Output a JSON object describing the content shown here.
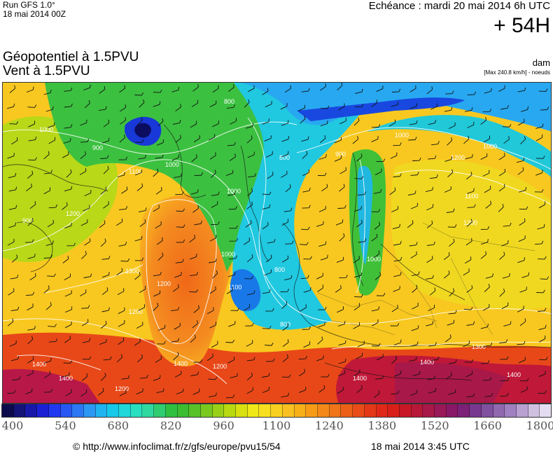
{
  "header": {
    "run_model": "Run GFS 1.0°",
    "run_date": "18 mai 2014 00Z",
    "forecast_time": "Echéance : mardi 20 mai 2014 6h UTC",
    "forecast_offset": "+ 54H"
  },
  "titles": {
    "line1": "Géopotentiel à 1.5PVU",
    "line2": "Vent à 1.5PVU",
    "unit": "dam",
    "max_wind": "[Max 240.8 km/h] - noeuds"
  },
  "map": {
    "contour_labels": [
      "1000",
      "900",
      "800",
      "1000",
      "1100",
      "1000",
      "800",
      "900",
      "1000",
      "1200",
      "1100",
      "1000",
      "1200",
      "1200",
      "1300",
      "1200",
      "1000",
      "800",
      "1100",
      "1000",
      "1200",
      "800",
      "1400",
      "1400",
      "1400",
      "1200",
      "1400",
      "1400",
      "1300",
      "1400",
      "900",
      "1200"
    ],
    "colors": {
      "trough": "#2030d8",
      "jet": "#1ca8f0",
      "mid": "#3cc83c",
      "ridge_yellow": "#e8e020",
      "ridge_orange": "#f07820",
      "ridge_red": "#e02818",
      "high": "#a01858"
    }
  },
  "scale": {
    "colors": [
      "#0c0c4c",
      "#141478",
      "#1818a8",
      "#1c20d4",
      "#2038f0",
      "#2858f4",
      "#2c78f4",
      "#2c98f4",
      "#20b4f0",
      "#18c8e8",
      "#20d8d8",
      "#28e0c0",
      "#30d8a0",
      "#30cc70",
      "#30c040",
      "#3cbc30",
      "#58c028",
      "#78c820",
      "#98d018",
      "#b8d810",
      "#d8e010",
      "#f0e818",
      "#f8e020",
      "#f8d020",
      "#f8c020",
      "#f8b018",
      "#f89c18",
      "#f48818",
      "#f07418",
      "#ec6018",
      "#e84c18",
      "#e43818",
      "#e02818",
      "#d82018",
      "#c81828",
      "#b81838",
      "#a81848",
      "#981858",
      "#8a1868",
      "#7c2078",
      "#783890",
      "#8050a0",
      "#9068b0",
      "#a080c0",
      "#b8a0d0",
      "#d0c0e0",
      "#e4dcf0"
    ],
    "labels": [
      "400",
      "540",
      "680",
      "820",
      "960",
      "1100",
      "1240",
      "1380",
      "1520",
      "1660",
      "1800"
    ]
  },
  "footer": {
    "copyright": "© http://www.infoclimat.fr/z/gfs/europe/pvu15/54",
    "issued": "18 mai 2014  3:45 UTC"
  }
}
